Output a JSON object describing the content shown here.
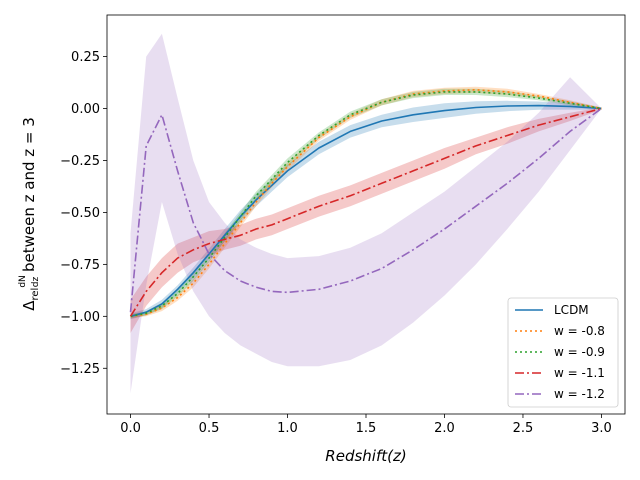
{
  "chart_data": {
    "type": "line",
    "xlabel": "Redshift(z)",
    "ylabel_prefix": "Δ",
    "ylabel_sub": "rel",
    "ylabel_frac_num": "dN",
    "ylabel_frac_den": "dz",
    "ylabel_suffix": " between z and z = 3",
    "xlim": [
      -0.15,
      3.15
    ],
    "ylim": [
      -1.47,
      0.45
    ],
    "xticks": [
      "0.0",
      "0.5",
      "1.0",
      "1.5",
      "2.0",
      "2.5",
      "3.0"
    ],
    "yticks": [
      "0.25",
      "0.00",
      "−0.25",
      "−0.50",
      "−0.75",
      "−1.00",
      "−1.25"
    ],
    "xtick_values": [
      0,
      0.5,
      1.0,
      1.5,
      2.0,
      2.5,
      3.0
    ],
    "ytick_values": [
      0.25,
      0.0,
      -0.25,
      -0.5,
      -0.75,
      -1.0,
      -1.25
    ],
    "grid": false,
    "legend_position": "lower right",
    "x": [
      0.0,
      0.1,
      0.2,
      0.3,
      0.4,
      0.5,
      0.6,
      0.7,
      0.8,
      0.9,
      1.0,
      1.2,
      1.4,
      1.6,
      1.8,
      2.0,
      2.2,
      2.4,
      2.6,
      2.8,
      3.0
    ],
    "series": [
      {
        "name": "LCDM",
        "color": "#1f77b4",
        "style": "solid",
        "values": [
          -1.0,
          -0.98,
          -0.94,
          -0.87,
          -0.79,
          -0.7,
          -0.61,
          -0.52,
          -0.44,
          -0.37,
          -0.3,
          -0.19,
          -0.11,
          -0.06,
          -0.03,
          -0.01,
          0.005,
          0.012,
          0.014,
          0.01,
          0.0
        ],
        "band": [
          0.015,
          0.015,
          0.02,
          0.02,
          0.025,
          0.025,
          0.03,
          0.03,
          0.03,
          0.03,
          0.03,
          0.03,
          0.03,
          0.03,
          0.035,
          0.035,
          0.03,
          0.025,
          0.02,
          0.015,
          0.005
        ]
      },
      {
        "name": "w = -0.8",
        "color": "#ff7f0e",
        "style": "dotted",
        "values": [
          -1.0,
          -0.99,
          -0.96,
          -0.91,
          -0.84,
          -0.75,
          -0.65,
          -0.55,
          -0.45,
          -0.36,
          -0.28,
          -0.14,
          -0.04,
          0.03,
          0.07,
          0.085,
          0.09,
          0.08,
          0.06,
          0.03,
          0.0
        ],
        "band": [
          0.01,
          0.01,
          0.015,
          0.015,
          0.02,
          0.02,
          0.02,
          0.02,
          0.02,
          0.02,
          0.02,
          0.015,
          0.015,
          0.015,
          0.015,
          0.015,
          0.015,
          0.015,
          0.01,
          0.01,
          0.005
        ]
      },
      {
        "name": "w = -0.9",
        "color": "#2ca02c",
        "style": "dotted",
        "values": [
          -1.0,
          -0.985,
          -0.95,
          -0.89,
          -0.81,
          -0.72,
          -0.62,
          -0.52,
          -0.42,
          -0.34,
          -0.26,
          -0.13,
          -0.03,
          0.03,
          0.065,
          0.08,
          0.08,
          0.07,
          0.05,
          0.025,
          0.0
        ],
        "band": [
          0.01,
          0.01,
          0.015,
          0.015,
          0.02,
          0.02,
          0.02,
          0.02,
          0.02,
          0.02,
          0.02,
          0.015,
          0.015,
          0.015,
          0.015,
          0.015,
          0.015,
          0.015,
          0.01,
          0.01,
          0.005
        ]
      },
      {
        "name": "w = -1.1",
        "color": "#d62728",
        "style": "dashdot",
        "values": [
          -1.0,
          -0.88,
          -0.79,
          -0.72,
          -0.68,
          -0.65,
          -0.63,
          -0.61,
          -0.58,
          -0.56,
          -0.53,
          -0.47,
          -0.42,
          -0.36,
          -0.3,
          -0.24,
          -0.18,
          -0.13,
          -0.08,
          -0.04,
          0.0
        ],
        "band": [
          0.08,
          0.07,
          0.07,
          0.07,
          0.06,
          0.06,
          0.05,
          0.05,
          0.05,
          0.05,
          0.05,
          0.05,
          0.05,
          0.05,
          0.05,
          0.05,
          0.04,
          0.04,
          0.03,
          0.02,
          0.005
        ]
      },
      {
        "name": "w = -1.2",
        "color": "#9467bd",
        "style": "dashdot",
        "values": [
          -0.98,
          -0.18,
          -0.03,
          -0.3,
          -0.55,
          -0.7,
          -0.78,
          -0.83,
          -0.86,
          -0.88,
          -0.885,
          -0.87,
          -0.83,
          -0.77,
          -0.68,
          -0.58,
          -0.47,
          -0.36,
          -0.24,
          -0.11,
          0.0
        ],
        "band_upper": [
          -0.6,
          0.25,
          0.36,
          0.05,
          -0.25,
          -0.45,
          -0.55,
          -0.63,
          -0.67,
          -0.7,
          -0.72,
          -0.71,
          -0.67,
          -0.6,
          -0.5,
          -0.4,
          -0.28,
          -0.16,
          -0.02,
          0.15,
          0.0
        ],
        "band_lower": [
          -1.37,
          -0.85,
          -0.45,
          -0.7,
          -0.88,
          -1.0,
          -1.08,
          -1.14,
          -1.18,
          -1.22,
          -1.24,
          -1.24,
          -1.21,
          -1.14,
          -1.03,
          -0.9,
          -0.75,
          -0.58,
          -0.4,
          -0.2,
          0.0
        ]
      }
    ]
  }
}
